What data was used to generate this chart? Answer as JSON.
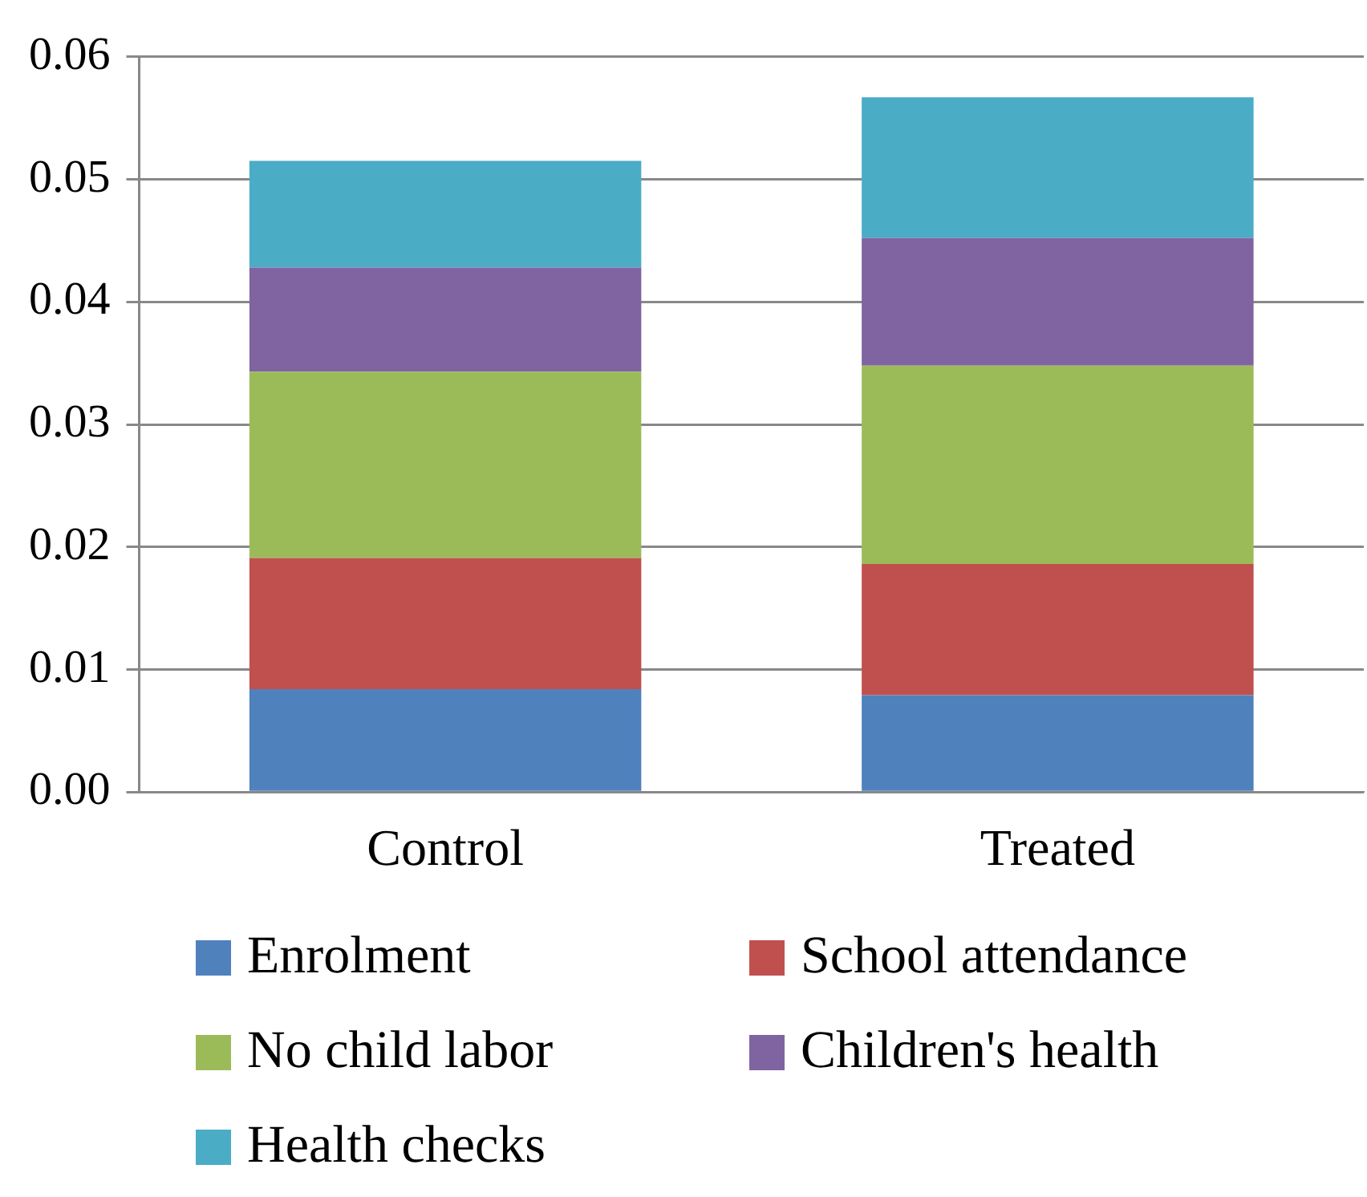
{
  "chart_data": {
    "type": "bar",
    "stacked": true,
    "categories": [
      "Control",
      "Treated"
    ],
    "series": [
      {
        "name": "Enrolment",
        "color": "#4f81bd",
        "values": [
          0.0084,
          0.0079
        ]
      },
      {
        "name": "School attendance",
        "color": "#c0504d",
        "values": [
          0.0107,
          0.0107
        ]
      },
      {
        "name": "No child labor",
        "color": "#9bbb59",
        "values": [
          0.0152,
          0.0162
        ]
      },
      {
        "name": "Children's health",
        "color": "#8064a2",
        "values": [
          0.0085,
          0.0104
        ]
      },
      {
        "name": "Health checks",
        "color": "#4bacc6",
        "values": [
          0.0087,
          0.0115
        ]
      }
    ],
    "ylim": [
      0,
      0.06
    ],
    "yticks": [
      {
        "value": 0,
        "label": "0.00"
      },
      {
        "value": 0.01,
        "label": "0.01"
      },
      {
        "value": 0.02,
        "label": "0.02"
      },
      {
        "value": 0.03,
        "label": "0.03"
      },
      {
        "value": 0.04,
        "label": "0.04"
      },
      {
        "value": 0.05,
        "label": "0.05"
      },
      {
        "value": 0.06,
        "label": "0.06"
      }
    ],
    "grid": "y",
    "legend": "bottom"
  }
}
